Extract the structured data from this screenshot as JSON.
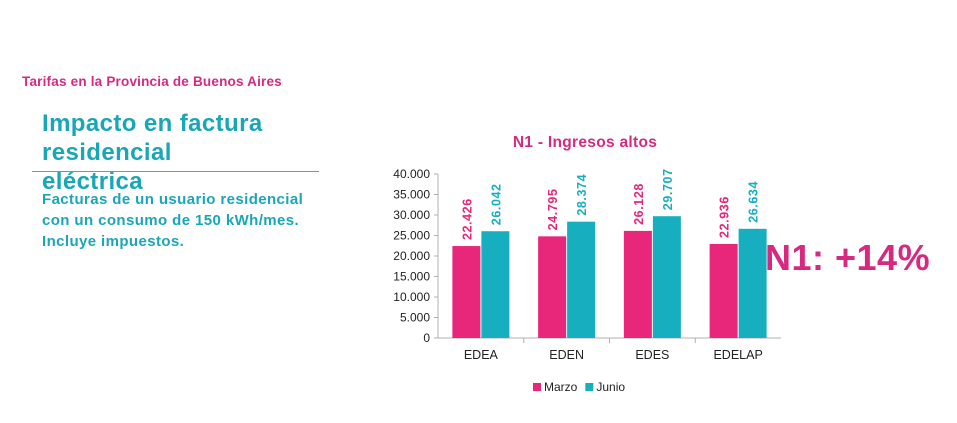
{
  "header": {
    "kicker": "Tarifas en la Provincia de Buenos Aires",
    "title": "Impacto en factura residencial eléctrica",
    "subtitle": "Facturas de un usuario residencial con un consumo de 150 kWh/mes. Incluye impuestos."
  },
  "highlight": {
    "text": "N1: +14%"
  },
  "colors": {
    "marzo": "#e8267a",
    "junio": "#17afc0",
    "axis": "#b0b0b0"
  },
  "chart_data": {
    "type": "bar",
    "title": "N1 - Ingresos altos",
    "categories": [
      "EDEA",
      "EDEN",
      "EDES",
      "EDELAP"
    ],
    "series": [
      {
        "name": "Marzo",
        "values": [
          22426,
          24795,
          26128,
          22936
        ],
        "labels": [
          "22.426",
          "24.795",
          "26.128",
          "22.936"
        ]
      },
      {
        "name": "Junio",
        "values": [
          26042,
          28374,
          29707,
          26634
        ],
        "labels": [
          "26.042",
          "28.374",
          "29.707",
          "26.634"
        ]
      }
    ],
    "ylim": [
      0,
      40000
    ],
    "yticks": [
      "0",
      "5.000",
      "10.000",
      "15.000",
      "20.000",
      "25.000",
      "30.000",
      "35.000",
      "40.000"
    ],
    "xlabel": "",
    "ylabel": "",
    "legend": "bottom",
    "grid": false
  }
}
